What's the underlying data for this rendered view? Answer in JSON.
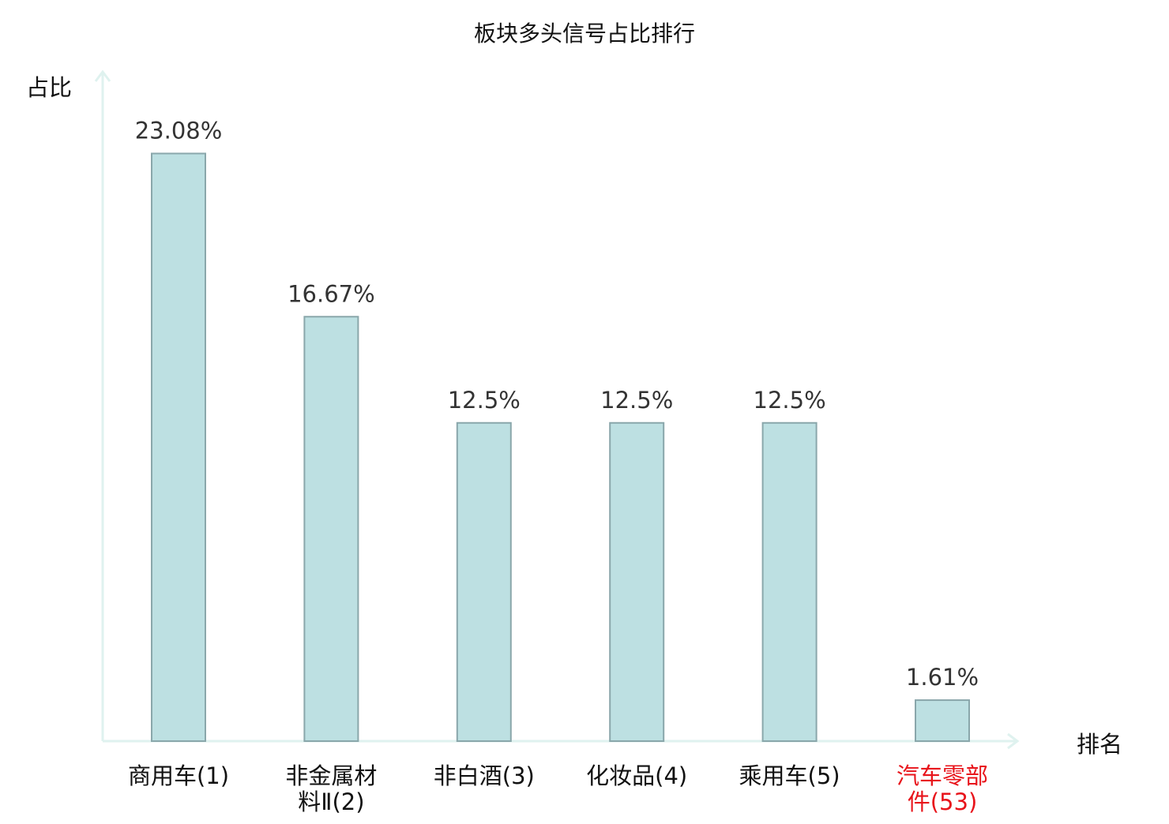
{
  "chart_data": {
    "type": "bar",
    "title": "板块多头信号占比排行",
    "ylabel": "占比",
    "xlabel": "排名",
    "categories": [
      [
        "商用车(1)"
      ],
      [
        "非金属材",
        "料Ⅱ(2)"
      ],
      [
        "非白酒(3)"
      ],
      [
        "化妆品(4)"
      ],
      [
        "乘用车(5)"
      ],
      [
        "汽车零部",
        "件(53)"
      ]
    ],
    "values": [
      23.08,
      16.67,
      12.5,
      12.5,
      12.5,
      1.61
    ],
    "value_labels": [
      "23.08%",
      "16.67%",
      "12.5%",
      "12.5%",
      "12.5%",
      "1.61%"
    ],
    "highlight_index": 5,
    "ylim": [
      0,
      24.8
    ],
    "grid": false,
    "colors": {
      "bar_fill": "#bde0e2",
      "bar_stroke": "#8aa7ab",
      "axis": "#dff2ef",
      "text": "#111111",
      "value_text": "#333333",
      "highlight_text": "#e8141b"
    }
  }
}
